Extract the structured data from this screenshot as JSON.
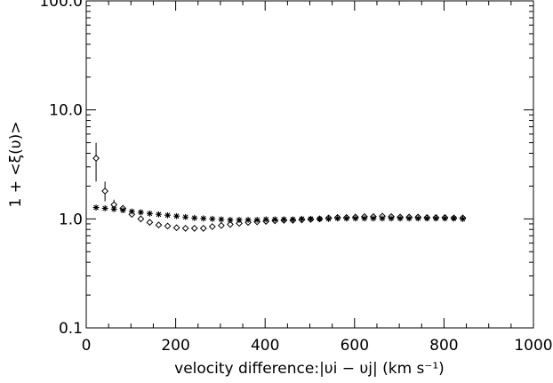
{
  "chart_data": {
    "type": "scatter",
    "xlabel": "velocity difference:|υi − υj| (km s⁻¹)",
    "ylabel": "1 + <ξ(υ)>",
    "xlim": [
      0,
      1000
    ],
    "ylim": [
      0.1,
      100
    ],
    "yscale": "log",
    "grid": false,
    "xticks": [
      {
        "value": 0,
        "label": "0"
      },
      {
        "value": 200,
        "label": "200"
      },
      {
        "value": 400,
        "label": "400"
      },
      {
        "value": 600,
        "label": "600"
      },
      {
        "value": 800,
        "label": "800"
      },
      {
        "value": 1000,
        "label": "1000"
      }
    ],
    "yticks": [
      {
        "value": 0.1,
        "label": "0.1"
      },
      {
        "value": 1,
        "label": "1.0"
      },
      {
        "value": 10,
        "label": "10.0"
      },
      {
        "value": 100,
        "label": "100.0"
      }
    ],
    "series": [
      {
        "marker": "diamond",
        "x": [
          22,
          42,
          62,
          82,
          102,
          122,
          142,
          162,
          182,
          202,
          222,
          242,
          262,
          282,
          302,
          322,
          342,
          362,
          382,
          402,
          422,
          442,
          462,
          482,
          502,
          522,
          542,
          562,
          582,
          602,
          622,
          642,
          662,
          682,
          702,
          722,
          742,
          762,
          782,
          802,
          822,
          842
        ],
        "y": [
          3.6,
          1.8,
          1.35,
          1.25,
          1.1,
          1.0,
          0.93,
          0.88,
          0.86,
          0.83,
          0.82,
          0.82,
          0.82,
          0.85,
          0.87,
          0.89,
          0.91,
          0.93,
          0.94,
          0.95,
          0.96,
          0.97,
          0.97,
          0.98,
          0.99,
          1.0,
          1.02,
          1.03,
          1.03,
          1.04,
          1.05,
          1.05,
          1.06,
          1.05,
          1.04,
          1.04,
          1.04,
          1.03,
          1.03,
          1.03,
          1.02,
          1.02
        ],
        "yerr_low": [
          2.2,
          1.45,
          1.2
        ],
        "yerr_high": [
          5.0,
          2.2,
          1.5
        ]
      },
      {
        "marker": "asterisk",
        "x": [
          22,
          42,
          62,
          82,
          102,
          122,
          142,
          162,
          182,
          202,
          222,
          242,
          262,
          282,
          302,
          322,
          342,
          362,
          382,
          402,
          422,
          442,
          462,
          482,
          502,
          522,
          542,
          562,
          582,
          602,
          622,
          642,
          662,
          682,
          702,
          722,
          742,
          762,
          782,
          802,
          822,
          842
        ],
        "y": [
          1.27,
          1.25,
          1.23,
          1.2,
          1.17,
          1.15,
          1.12,
          1.1,
          1.08,
          1.06,
          1.04,
          1.02,
          1.01,
          1.0,
          0.99,
          0.98,
          0.98,
          0.98,
          0.98,
          0.99,
          0.99,
          0.99,
          0.99,
          1.0,
          1.0,
          1.0,
          1.0,
          1.01,
          1.01,
          1.01,
          1.01,
          1.01,
          1.01,
          1.01,
          1.01,
          1.01,
          1.01,
          1.01,
          1.01,
          1.01,
          1.01,
          1.0
        ]
      }
    ]
  }
}
